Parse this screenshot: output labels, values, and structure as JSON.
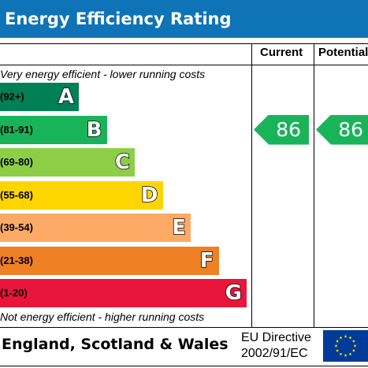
{
  "title": "Energy Efficiency Rating",
  "columns": {
    "current": "Current",
    "potential": "Potential"
  },
  "notes": {
    "top": "Very energy efficient - lower running costs",
    "bottom": "Not energy efficient - higher running costs"
  },
  "footer": {
    "country": "England, Scotland & Wales",
    "directive_line1": "EU Directive",
    "directive_line2": "2002/91/EC"
  },
  "colors": {
    "title_bar": "#0f73b8",
    "A": "#008054",
    "B": "#19b459",
    "C": "#8dce46",
    "D": "#ffd500",
    "E": "#fcaa65",
    "F": "#ef8023",
    "G": "#e9153b",
    "eu_flag": "#003b99",
    "eu_stars": "#ffdd00"
  },
  "chart_data": {
    "type": "bar",
    "categories": [
      "A",
      "B",
      "C",
      "D",
      "E",
      "F",
      "G"
    ],
    "ranges": [
      "(92+)",
      "(81-91)",
      "(69-80)",
      "(55-68)",
      "(39-54)",
      "(21-38)",
      "(1-20)"
    ],
    "current": {
      "value": 86,
      "band": "B"
    },
    "potential": {
      "value": 86,
      "band": "B"
    }
  }
}
